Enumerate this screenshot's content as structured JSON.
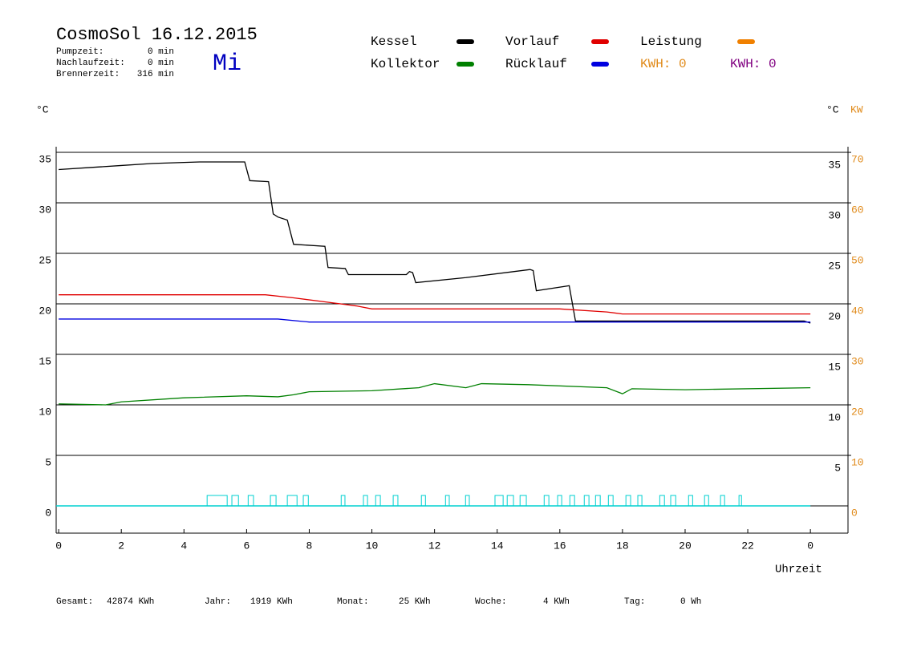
{
  "chart_data": {
    "type": "line",
    "title": "CosmoSol 16.12.2015",
    "day": "Mi",
    "info": [
      {
        "label": "Pumpzeit:",
        "value": "0 min"
      },
      {
        "label": "Nachlaufzeit:",
        "value": "0 min"
      },
      {
        "label": "Brennerzeit:",
        "value": "316 min"
      }
    ],
    "series": [
      {
        "name": "Kessel",
        "color": "#000000",
        "x": [
          0,
          1,
          2,
          3,
          4.5,
          5.94,
          6.1,
          6.7,
          6.85,
          7.0,
          7.3,
          7.5,
          8.5,
          8.6,
          9.15,
          9.25,
          11.1,
          11.2,
          11.3,
          11.4,
          13,
          15.05,
          15.15,
          15.25,
          16.3,
          16.5,
          23.8,
          24
        ],
        "values": [
          33.3,
          33.5,
          33.7,
          33.9,
          34.05,
          34.05,
          32.2,
          32.1,
          28.9,
          28.6,
          28.3,
          25.9,
          25.7,
          23.6,
          23.5,
          22.9,
          22.9,
          23.2,
          23.1,
          22.1,
          22.6,
          23.4,
          23.3,
          21.3,
          21.8,
          18.3,
          18.3,
          18.1
        ]
      },
      {
        "name": "Vorlauf",
        "color": "#e00000",
        "x": [
          0,
          6.6,
          7.5,
          8.5,
          9.5,
          10,
          16,
          17.5,
          18,
          24
        ],
        "values": [
          20.9,
          20.9,
          20.6,
          20.2,
          19.8,
          19.5,
          19.5,
          19.2,
          19.0,
          19.0
        ]
      },
      {
        "name": "Leistung",
        "color": "#f08000",
        "x": [],
        "values": []
      },
      {
        "name": "Kollektor",
        "color": "#008000",
        "x": [
          0,
          1.5,
          2,
          4,
          6,
          7,
          7.5,
          8,
          10,
          11.5,
          12,
          13,
          13.5,
          15,
          17.5,
          18,
          18.3,
          20,
          24
        ],
        "values": [
          10.1,
          10.0,
          10.3,
          10.7,
          10.9,
          10.8,
          11.0,
          11.3,
          11.4,
          11.7,
          12.1,
          11.7,
          12.1,
          12.0,
          11.7,
          11.1,
          11.6,
          11.5,
          11.7
        ]
      },
      {
        "name": "Rücklauf",
        "color": "#0000e0",
        "x": [
          0,
          7,
          8,
          24
        ],
        "values": [
          18.5,
          18.5,
          18.2,
          18.2
        ]
      }
    ],
    "kwh_labels": [
      {
        "text": "KWH: 0",
        "color": "#e08a1a"
      },
      {
        "text": "KWH: 0",
        "color": "#800080"
      }
    ],
    "pump": {
      "color": "#00d0d0",
      "intervals": [
        [
          4.74,
          5.38
        ],
        [
          5.53,
          5.74
        ],
        [
          6.05,
          6.22
        ],
        [
          6.76,
          6.94
        ],
        [
          7.3,
          7.61
        ],
        [
          7.81,
          7.97
        ],
        [
          9.02,
          9.14
        ],
        [
          9.73,
          9.86
        ],
        [
          10.12,
          10.27
        ],
        [
          10.68,
          10.83
        ],
        [
          11.58,
          11.71
        ],
        [
          12.35,
          12.47
        ],
        [
          12.99,
          13.11
        ],
        [
          13.93,
          14.19
        ],
        [
          14.32,
          14.52
        ],
        [
          14.73,
          14.93
        ],
        [
          15.5,
          15.65
        ],
        [
          15.93,
          16.06
        ],
        [
          16.32,
          16.47
        ],
        [
          16.78,
          16.93
        ],
        [
          17.14,
          17.29
        ],
        [
          17.55,
          17.7
        ],
        [
          18.11,
          18.26
        ],
        [
          18.49,
          18.62
        ],
        [
          19.19,
          19.34
        ],
        [
          19.54,
          19.7
        ],
        [
          20.11,
          20.24
        ],
        [
          20.62,
          20.75
        ],
        [
          21.13,
          21.26
        ],
        [
          21.72,
          21.8
        ]
      ]
    },
    "y_label_left": "°C",
    "y_label_right": "°C",
    "y2_label": "KW",
    "y2_color": "#e08a1a",
    "x_label": "Uhrzeit",
    "xlim": [
      -0.08,
      25.2
    ],
    "xticks": [
      0,
      2,
      4,
      6,
      8,
      10,
      12,
      14,
      16,
      18,
      20,
      22,
      {
        "value": 24,
        "label": "0"
      }
    ],
    "ylim": [
      -2.7,
      35.56
    ],
    "yticks": [
      0,
      5,
      10,
      15,
      20,
      25,
      30,
      35
    ],
    "y_right_ticks": [
      5,
      10,
      15,
      20,
      25,
      30,
      35
    ],
    "y2lim": [
      -5.4,
      71.12
    ],
    "y2ticks": [
      0,
      10,
      20,
      30,
      40,
      50,
      60,
      70
    ],
    "grid": true,
    "totals": [
      {
        "label": "Gesamt:",
        "value": "42874 KWh"
      },
      {
        "label": "Jahr:",
        "value": "1919 KWh"
      },
      {
        "label": "Monat:",
        "value": "25 KWh"
      },
      {
        "label": "Woche:",
        "value": "4 KWh"
      },
      {
        "label": "Tag:",
        "value": "0 Wh"
      }
    ]
  }
}
